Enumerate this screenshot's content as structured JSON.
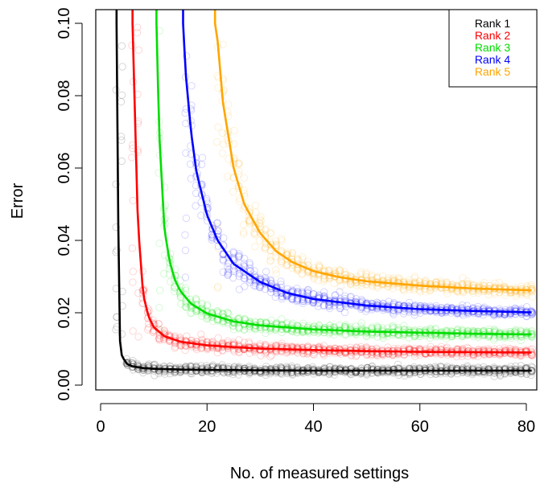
{
  "chart_data": {
    "type": "scatter",
    "title": "",
    "xlabel": "No. of measured settings",
    "ylabel": "Error",
    "xlim": [
      0,
      81
    ],
    "ylim": [
      0,
      0.1
    ],
    "x_ticks": [
      0,
      20,
      40,
      60,
      80
    ],
    "y_ticks": [
      0.0,
      0.02,
      0.04,
      0.06,
      0.08,
      0.1
    ],
    "x_tick_labels": [
      "0",
      "20",
      "40",
      "60",
      "80"
    ],
    "y_tick_labels": [
      "0.00",
      "0.02",
      "0.04",
      "0.06",
      "0.08",
      "0.10"
    ],
    "grid": false,
    "legend_position": "top-right",
    "marker": "open-circle",
    "series": [
      {
        "name": "Rank 1",
        "color": "#000000",
        "asymptote": 0.004,
        "x": [
          3,
          3.5,
          4,
          5,
          6,
          8,
          10,
          15,
          20,
          30,
          40,
          50,
          60,
          70,
          81
        ],
        "values": [
          0.1,
          0.014,
          0.008,
          0.0058,
          0.0052,
          0.0047,
          0.0045,
          0.0043,
          0.0042,
          0.0041,
          0.004,
          0.004,
          0.004,
          0.004,
          0.004
        ]
      },
      {
        "name": "Rank 2",
        "color": "#ff0000",
        "asymptote": 0.009,
        "x": [
          6,
          7,
          8,
          9,
          10,
          12,
          15,
          20,
          25,
          30,
          40,
          50,
          60,
          70,
          81
        ],
        "values": [
          0.1,
          0.045,
          0.025,
          0.019,
          0.016,
          0.0135,
          0.012,
          0.011,
          0.0105,
          0.0101,
          0.0097,
          0.0094,
          0.0092,
          0.0091,
          0.009
        ]
      },
      {
        "name": "Rank 3",
        "color": "#00dd00",
        "asymptote": 0.014,
        "x": [
          10.5,
          11,
          12,
          13,
          14,
          15,
          17,
          20,
          25,
          30,
          40,
          50,
          60,
          70,
          81
        ],
        "values": [
          0.1,
          0.07,
          0.043,
          0.034,
          0.029,
          0.026,
          0.0225,
          0.0198,
          0.0176,
          0.0165,
          0.0154,
          0.0148,
          0.0145,
          0.0142,
          0.014
        ]
      },
      {
        "name": "Rank 4",
        "color": "#0000ff",
        "asymptote": 0.02,
        "x": [
          15.5,
          16,
          17,
          18,
          20,
          22,
          25,
          30,
          35,
          40,
          50,
          60,
          70,
          81
        ],
        "values": [
          0.1,
          0.086,
          0.07,
          0.059,
          0.047,
          0.04,
          0.0335,
          0.0285,
          0.0255,
          0.0238,
          0.022,
          0.021,
          0.0205,
          0.0201
        ]
      },
      {
        "name": "Rank 5",
        "color": "#ffa500",
        "asymptote": 0.0255,
        "x": [
          21.5,
          22,
          23,
          25,
          27,
          30,
          33,
          36,
          40,
          45,
          50,
          60,
          70,
          81
        ],
        "values": [
          0.1,
          0.095,
          0.078,
          0.06,
          0.05,
          0.042,
          0.037,
          0.034,
          0.0315,
          0.0298,
          0.0287,
          0.0275,
          0.0267,
          0.0262
        ]
      }
    ]
  }
}
